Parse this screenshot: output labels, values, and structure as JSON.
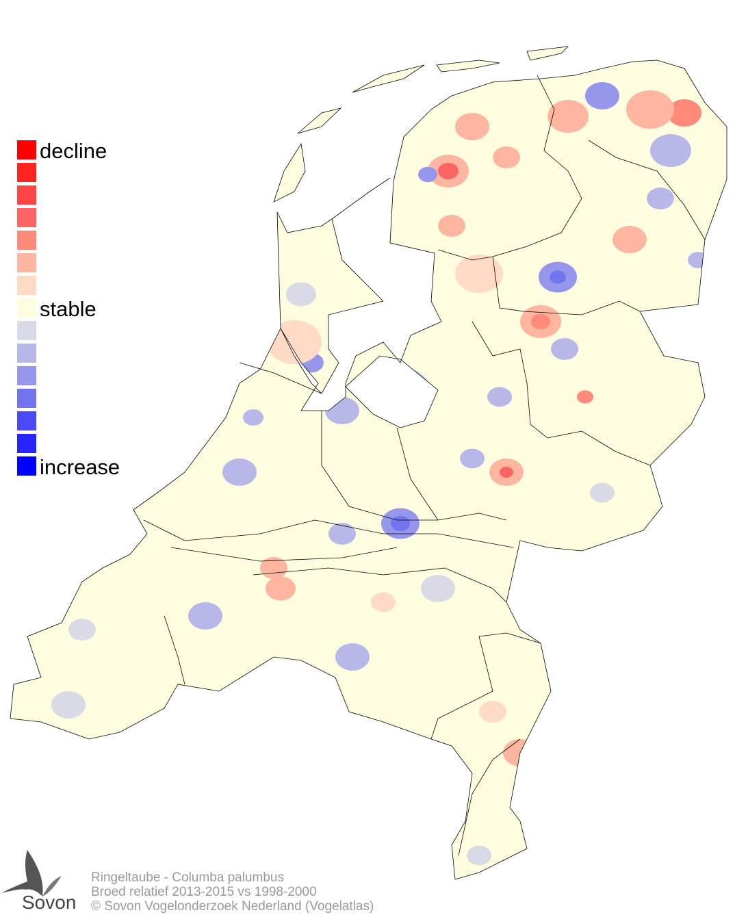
{
  "legend": {
    "label_decline": "decline",
    "label_stable": "stable",
    "label_increase": "increase",
    "colors": [
      "#ff0000",
      "#ff2222",
      "#ff4444",
      "#ff6464",
      "#ff8a7a",
      "#ffb6a0",
      "#ffdac4",
      "#fffde0",
      "#dadae6",
      "#b8b8e8",
      "#9696ea",
      "#7474ee",
      "#4a4af6",
      "#2626fa",
      "#0000ff"
    ]
  },
  "map": {
    "land_color": "#fffde0",
    "border_color": "#000000"
  },
  "footer": {
    "species": "Ringeltaube - Columba palumbus",
    "period": "Broed relatief 2013-2015 vs 1998-2000",
    "copyright": "© Sovon Vogelonderzoek Nederland (Vogelatlas)"
  },
  "logo": {
    "text": "Sovon"
  }
}
